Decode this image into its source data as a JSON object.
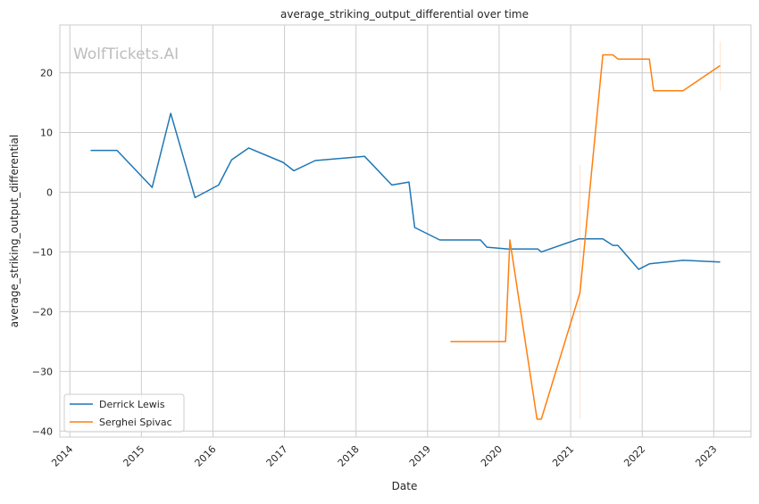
{
  "chart_data": {
    "type": "line",
    "title": "average_striking_output_differential over time",
    "xlabel": "Date",
    "ylabel": "average_striking_output_differential",
    "watermark": "WolfTickets.AI",
    "xlim": [
      2013.86,
      2023.52
    ],
    "ylim": [
      -41,
      28
    ],
    "xticks": [
      2014,
      2015,
      2016,
      2017,
      2018,
      2019,
      2020,
      2021,
      2022,
      2023
    ],
    "yticks": [
      -40,
      -30,
      -20,
      -10,
      0,
      10,
      20
    ],
    "grid": true,
    "legend_position": "lower-left",
    "series": [
      {
        "name": "Derrick Lewis",
        "color": "#1f77b4",
        "x": [
          2014.29,
          2014.66,
          2015.15,
          2015.41,
          2015.75,
          2016.08,
          2016.26,
          2016.5,
          2016.98,
          2017.13,
          2017.43,
          2018.12,
          2018.5,
          2018.74,
          2018.82,
          2019.17,
          2019.74,
          2019.83,
          2020.12,
          2020.54,
          2020.59,
          2021.12,
          2021.45,
          2021.59,
          2021.66,
          2021.95,
          2022.1,
          2022.57,
          2023.09
        ],
        "y": [
          7.0,
          7.0,
          0.8,
          13.2,
          -0.9,
          1.2,
          5.4,
          7.4,
          5.0,
          3.6,
          5.3,
          6.0,
          1.2,
          1.7,
          -5.9,
          -8.0,
          -8.0,
          -9.2,
          -9.5,
          -9.5,
          -10.0,
          -7.8,
          -7.8,
          -8.9,
          -8.9,
          -12.9,
          -12.0,
          -11.4,
          -11.7
        ]
      },
      {
        "name": "Serghei Spivac",
        "color": "#ff7f0e",
        "x": [
          2019.32,
          2020.09,
          2020.15,
          2020.53,
          2020.59,
          2021.13,
          2021.45,
          2021.59,
          2021.66,
          2022.1,
          2022.16,
          2022.57,
          2023.09
        ],
        "y": [
          -25,
          -25,
          -8.0,
          -38,
          -38,
          -16.8,
          23.0,
          23.0,
          22.3,
          22.3,
          17.0,
          17.0,
          21.2
        ],
        "error_bars": [
          {
            "x": 2021.13,
            "low": -38,
            "high": 4.6
          },
          {
            "x": 2023.09,
            "low": 17,
            "high": 25.2
          }
        ]
      }
    ]
  }
}
